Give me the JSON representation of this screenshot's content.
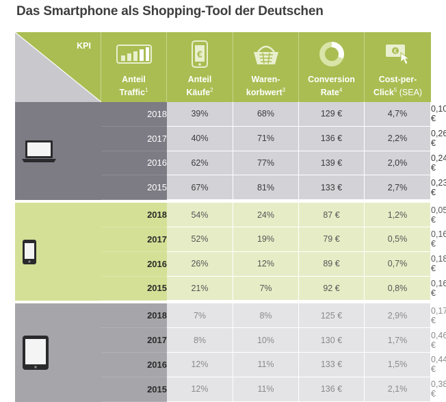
{
  "title": "Das Smartphone als Shopping-Tool der Deutschen",
  "colors": {
    "header_green": "#a9bd52",
    "laptop_group": "#7d7b84",
    "smartphone_group": "#d4e096",
    "tablet_group": "#a6a5aa"
  },
  "chart_data": {
    "type": "table",
    "title": "Das Smartphone als Shopping-Tool der Deutschen",
    "corner_label": "KPI",
    "columns": [
      {
        "line1": "Anteil",
        "line2": "Traffic",
        "sup": "1",
        "suffix": "",
        "icon": "traffic-bars-icon"
      },
      {
        "line1": "Anteil",
        "line2": "Käufe",
        "sup": "2",
        "suffix": "",
        "icon": "euro-phone-icon"
      },
      {
        "line1": "Waren-",
        "line2": "korbwert",
        "sup": "3",
        "suffix": "",
        "icon": "shopping-basket-icon"
      },
      {
        "line1": "Conversion",
        "line2": "Rate",
        "sup": "4",
        "suffix": "",
        "icon": "donut-chart-icon"
      },
      {
        "line1": "Cost-per-",
        "line2": "Click",
        "sup": "5",
        "suffix": " (SEA)",
        "icon": "click-money-icon"
      }
    ],
    "groups": [
      {
        "device": "laptop-icon",
        "rows": [
          {
            "year": "2018",
            "values": [
              "39%",
              "68%",
              "129 €",
              "4,7%",
              "0,10 €"
            ]
          },
          {
            "year": "2017",
            "values": [
              "40%",
              "71%",
              "136 €",
              "2,2%",
              "0,26 €"
            ]
          },
          {
            "year": "2016",
            "values": [
              "62%",
              "77%",
              "139 €",
              "2,0%",
              "0,24 €"
            ]
          },
          {
            "year": "2015",
            "values": [
              "67%",
              "81%",
              "133 €",
              "2,7%",
              "0,23 €"
            ]
          }
        ]
      },
      {
        "device": "smartphone-icon",
        "rows": [
          {
            "year": "2018",
            "values": [
              "54%",
              "24%",
              "87 €",
              "1,2%",
              "0,05 €"
            ]
          },
          {
            "year": "2017",
            "values": [
              "52%",
              "19%",
              "79 €",
              "0,5%",
              "0,16 €"
            ]
          },
          {
            "year": "2016",
            "values": [
              "26%",
              "12%",
              "89 €",
              "0,7%",
              "0,18 €"
            ]
          },
          {
            "year": "2015",
            "values": [
              "21%",
              "7%",
              "92 €",
              "0,8%",
              "0,16 €"
            ]
          }
        ]
      },
      {
        "device": "tablet-icon",
        "rows": [
          {
            "year": "2018",
            "values": [
              "7%",
              "8%",
              "125 €",
              "2,9%",
              "0,17 €"
            ]
          },
          {
            "year": "2017",
            "values": [
              "8%",
              "10%",
              "130 €",
              "1,7%",
              "0,46 €"
            ]
          },
          {
            "year": "2016",
            "values": [
              "12%",
              "11%",
              "133 €",
              "1,5%",
              "0,44 €"
            ]
          },
          {
            "year": "2015",
            "values": [
              "12%",
              "11%",
              "136 €",
              "2,1%",
              "0,38 €"
            ]
          }
        ]
      }
    ]
  }
}
